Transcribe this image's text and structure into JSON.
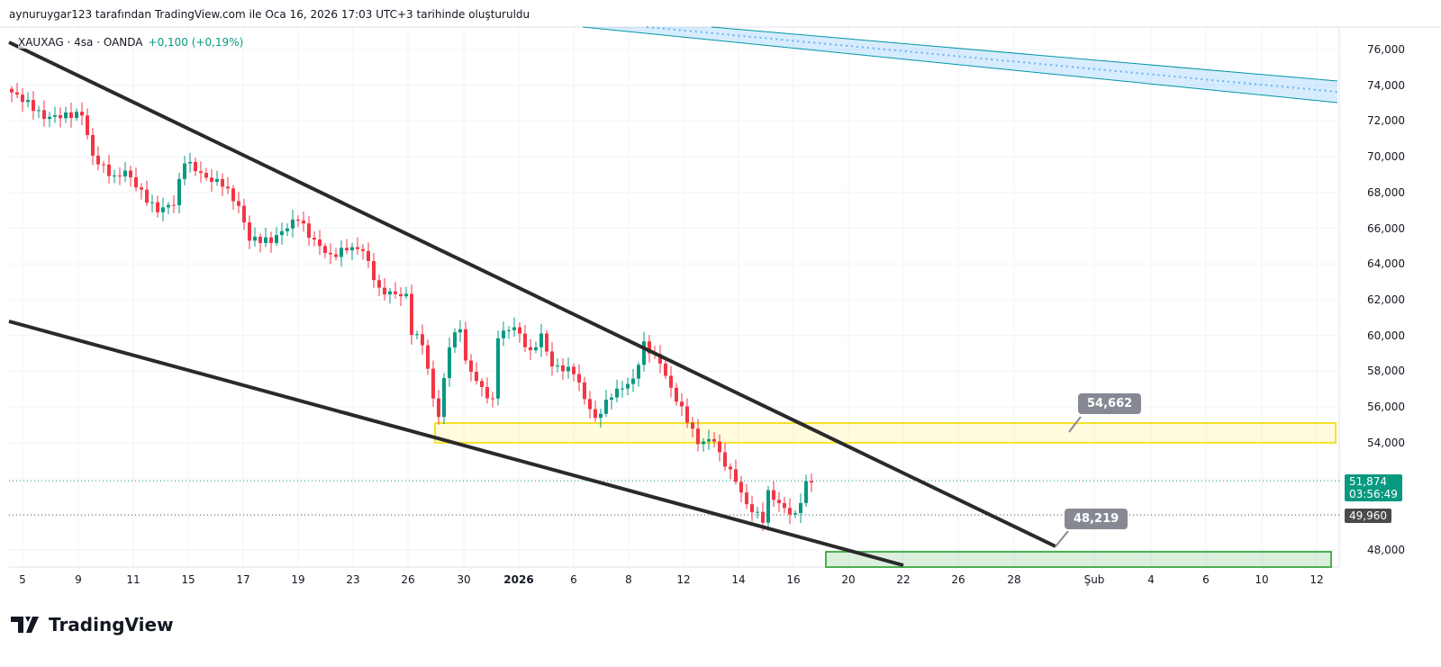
{
  "caption": "aynuruygar123 tarafından TradingView.com ile Oca 16, 2026 17:03 UTC+3 tarihinde oluşturuldu",
  "legend": {
    "symbol": "XAUXAG · 4sa · OANDA",
    "change": "+0,100 (+0,19%)"
  },
  "price_axis": [
    "76,000",
    "74,000",
    "72,000",
    "70,000",
    "68,000",
    "66,000",
    "64,000",
    "62,000",
    "60,000",
    "58,000",
    "56,000",
    "54,000",
    "48,000"
  ],
  "price_axis_values": [
    76000,
    74000,
    72000,
    70000,
    68000,
    66000,
    64000,
    62000,
    60000,
    58000,
    56000,
    54000,
    48000
  ],
  "time_axis": [
    {
      "t": "5",
      "bold": false
    },
    {
      "t": "9"
    },
    {
      "t": "11"
    },
    {
      "t": "15"
    },
    {
      "t": "17"
    },
    {
      "t": "19"
    },
    {
      "t": "23"
    },
    {
      "t": "26"
    },
    {
      "t": "30"
    },
    {
      "t": "2026",
      "bold": true
    },
    {
      "t": "6"
    },
    {
      "t": "8"
    },
    {
      "t": "12"
    },
    {
      "t": "14"
    },
    {
      "t": "16"
    },
    {
      "t": "20"
    },
    {
      "t": "22"
    },
    {
      "t": "26"
    },
    {
      "t": "28"
    },
    {
      "t": "Şub"
    },
    {
      "t": "4"
    },
    {
      "t": "6"
    },
    {
      "t": "10"
    },
    {
      "t": "12"
    }
  ],
  "last_price": "51,874",
  "countdown": "03:56:49",
  "prev_close": "49,960",
  "callouts": {
    "upper": "54,662",
    "lower": "48,219"
  },
  "zones": {
    "resistance": [
      54000,
      55100
    ],
    "support_top": 47900
  },
  "colors": {
    "up": "#089981",
    "down": "#f23645",
    "zone_yellow": "#f5e12a",
    "zone_green": "#4caf50",
    "channel": "#2196f3"
  },
  "chart_data": {
    "type": "candlestick",
    "anchors_index_close": [
      [
        0,
        73600
      ],
      [
        3,
        73000
      ],
      [
        6,
        72200
      ],
      [
        13,
        72400
      ],
      [
        15,
        70000
      ],
      [
        19,
        68800
      ],
      [
        21,
        69200
      ],
      [
        25,
        67600
      ],
      [
        27,
        67000
      ],
      [
        30,
        67400
      ],
      [
        32,
        69800
      ],
      [
        36,
        68800
      ],
      [
        39,
        68500
      ],
      [
        42,
        67200
      ],
      [
        44,
        65400
      ],
      [
        48,
        65300
      ],
      [
        53,
        66600
      ],
      [
        55,
        65600
      ],
      [
        59,
        64400
      ],
      [
        62,
        64900
      ],
      [
        65,
        64800
      ],
      [
        68,
        62500
      ],
      [
        73,
        62200
      ],
      [
        74,
        60200
      ],
      [
        76,
        59600
      ],
      [
        78,
        56500
      ],
      [
        79,
        55500
      ],
      [
        81,
        59500
      ],
      [
        83,
        60500
      ],
      [
        84,
        58500
      ],
      [
        87,
        57000
      ],
      [
        89,
        56300
      ],
      [
        90,
        60000
      ],
      [
        93,
        60500
      ],
      [
        96,
        59000
      ],
      [
        98,
        60000
      ],
      [
        100,
        58300
      ],
      [
        104,
        58000
      ],
      [
        106,
        56500
      ],
      [
        108,
        55300
      ],
      [
        111,
        56700
      ],
      [
        115,
        57500
      ],
      [
        117,
        59500
      ],
      [
        120,
        58500
      ],
      [
        122,
        57000
      ],
      [
        125,
        55300
      ],
      [
        127,
        54000
      ],
      [
        130,
        54200
      ],
      [
        131,
        53300
      ],
      [
        134,
        51900
      ],
      [
        136,
        50500
      ],
      [
        139,
        49700
      ],
      [
        140,
        51200
      ],
      [
        143,
        50300
      ],
      [
        145,
        49900
      ],
      [
        147,
        51700
      ],
      [
        148,
        51874
      ]
    ],
    "logo": "TradingView"
  }
}
